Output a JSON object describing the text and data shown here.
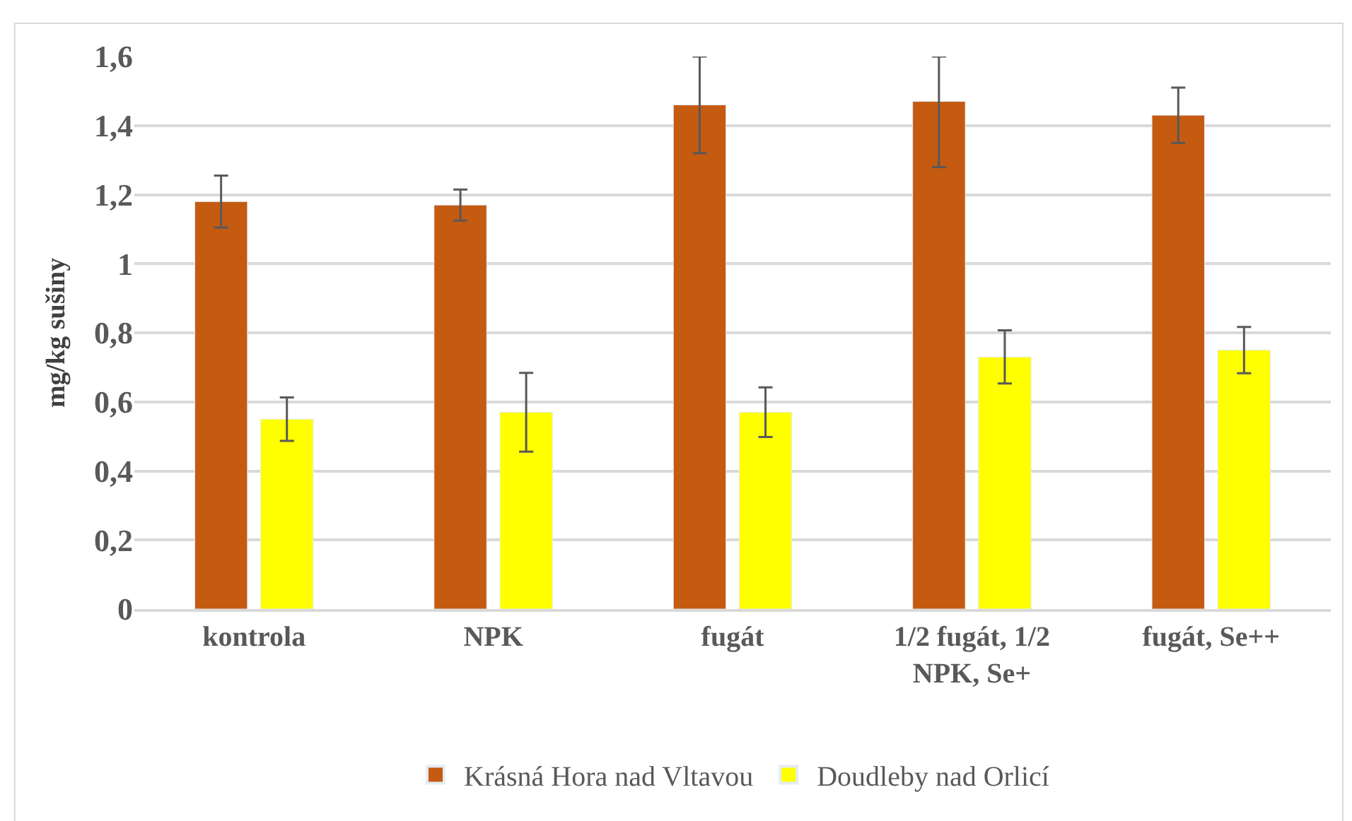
{
  "chart_data": {
    "type": "bar",
    "ylabel": "mg/kg sušiny",
    "categories": [
      "kontrola",
      "NPK",
      "fugát",
      "1/2 fugát, 1/2 NPK, Se+",
      "fugát, Se++"
    ],
    "series": [
      {
        "name": "Krásná Hora nad Vltavou",
        "color": "#c55a11",
        "values": [
          1.18,
          1.17,
          1.46,
          1.47,
          1.43
        ],
        "errors": [
          0.075,
          0.045,
          0.14,
          [
            1.28,
            1.6
          ],
          0.08
        ]
      },
      {
        "name": "Doudleby nad Orlicí",
        "color": "#ffff00",
        "values": [
          0.55,
          0.57,
          0.57,
          0.73,
          0.75
        ],
        "errors": [
          0.063,
          0.114,
          0.072,
          0.077,
          0.067
        ]
      }
    ],
    "ylim": [
      0,
      1.6
    ],
    "yticks": [
      {
        "value": 0,
        "label": "0"
      },
      {
        "value": 0.2,
        "label": "0,2"
      },
      {
        "value": 0.4,
        "label": "0,4"
      },
      {
        "value": 0.6,
        "label": "0,6"
      },
      {
        "value": 0.8,
        "label": "0,8"
      },
      {
        "value": 1,
        "label": "1"
      },
      {
        "value": 1.2,
        "label": "1,2"
      },
      {
        "value": 1.4,
        "label": "1,4"
      },
      {
        "value": 1.6,
        "label": "1,6"
      }
    ],
    "grid": "y",
    "legend": "bottom"
  }
}
